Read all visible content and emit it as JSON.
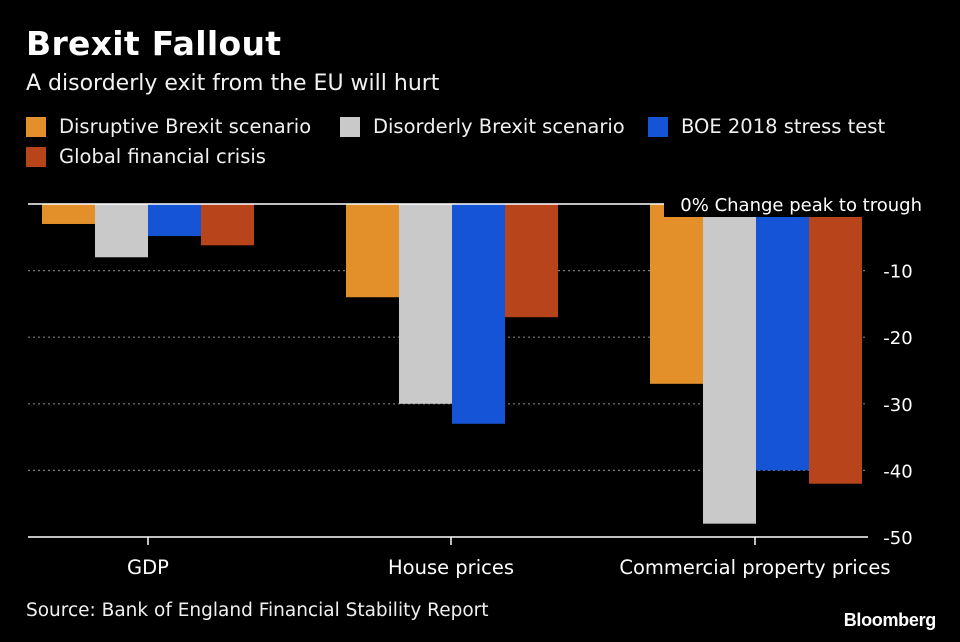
{
  "header": {
    "title": "Brexit Fallout",
    "subtitle": "A disorderly exit from the EU will hurt"
  },
  "legend": [
    {
      "label": "Disruptive Brexit scenario",
      "color": "#e3902a"
    },
    {
      "label": "Disorderly Brexit scenario",
      "color": "#c9c9c9"
    },
    {
      "label": "BOE 2018 stress test",
      "color": "#1554d6"
    },
    {
      "label": "Global financial crisis",
      "color": "#b8441c"
    }
  ],
  "chart_data": {
    "type": "bar",
    "title": "Brexit Fallout",
    "subtitle": "A disorderly exit from the EU will hurt",
    "ylabel": "% Change peak to trough",
    "zero_label": "0% Change peak to trough",
    "ylim": [
      -50,
      0
    ],
    "yticks": [
      -10,
      -20,
      -30,
      -40,
      -50
    ],
    "grid": true,
    "legend_position": "top",
    "categories": [
      "GDP",
      "House prices",
      "Commercial property prices"
    ],
    "series": [
      {
        "name": "Disruptive Brexit scenario",
        "color": "#e3902a",
        "values": [
          -3,
          -14,
          -27
        ]
      },
      {
        "name": "Disorderly Brexit scenario",
        "color": "#c9c9c9",
        "values": [
          -8,
          -30,
          -48
        ]
      },
      {
        "name": "BOE 2018 stress test",
        "color": "#1554d6",
        "values": [
          -4.8,
          -33,
          -40
        ]
      },
      {
        "name": "Global financial crisis",
        "color": "#b8441c",
        "values": [
          -6.2,
          -17,
          -42
        ]
      }
    ]
  },
  "footer": {
    "source": "Source: Bank of England Financial Stability Report",
    "brand": "Bloomberg"
  }
}
